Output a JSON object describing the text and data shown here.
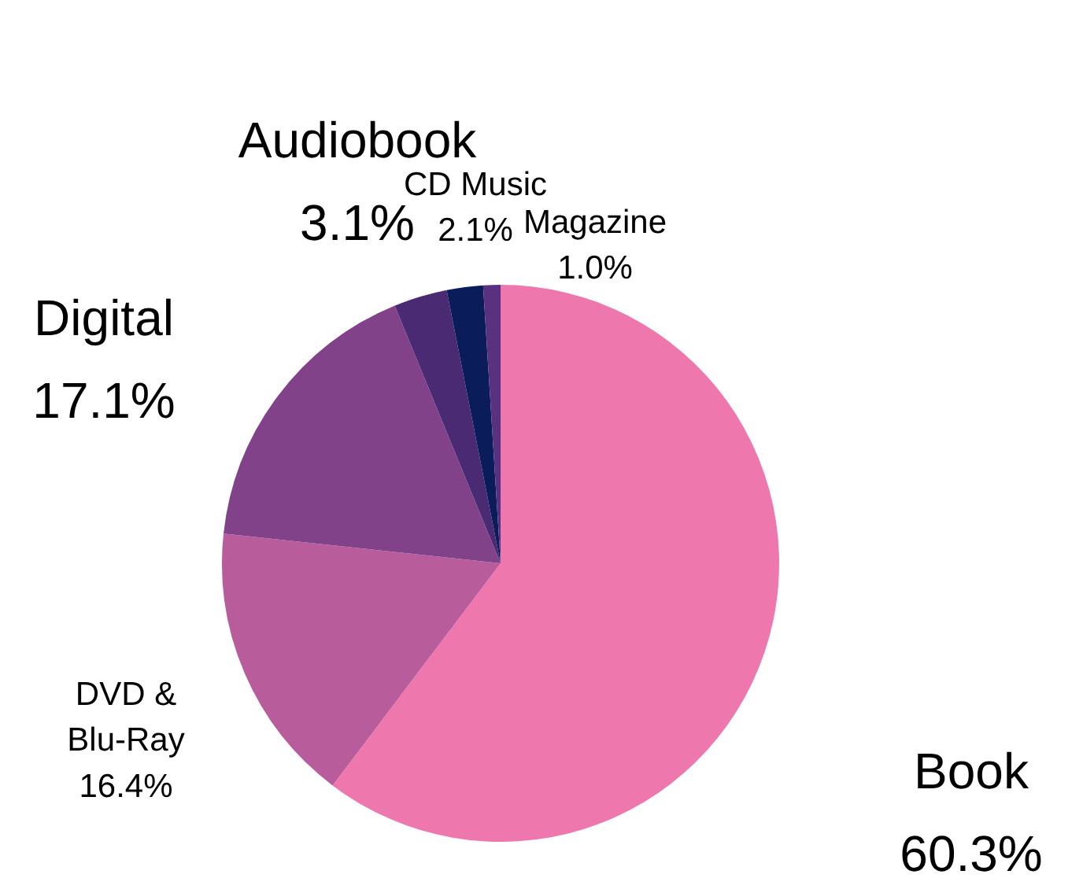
{
  "chart_data": {
    "type": "pie",
    "categories": [
      "Book",
      "DVD & Blu-Ray",
      "Digital",
      "Audiobook",
      "CD Music",
      "Magazine"
    ],
    "values": [
      60.3,
      16.4,
      17.1,
      3.1,
      2.1,
      1.0
    ],
    "value_labels": [
      "60.3%",
      "16.4%",
      "17.1%",
      "3.1%",
      "2.1%",
      "1.0%"
    ],
    "colors": [
      "#ee78ae",
      "#b85c9c",
      "#82428a",
      "#4b2a74",
      "#0b1c5a",
      "#5a3080"
    ],
    "legend": false
  }
}
